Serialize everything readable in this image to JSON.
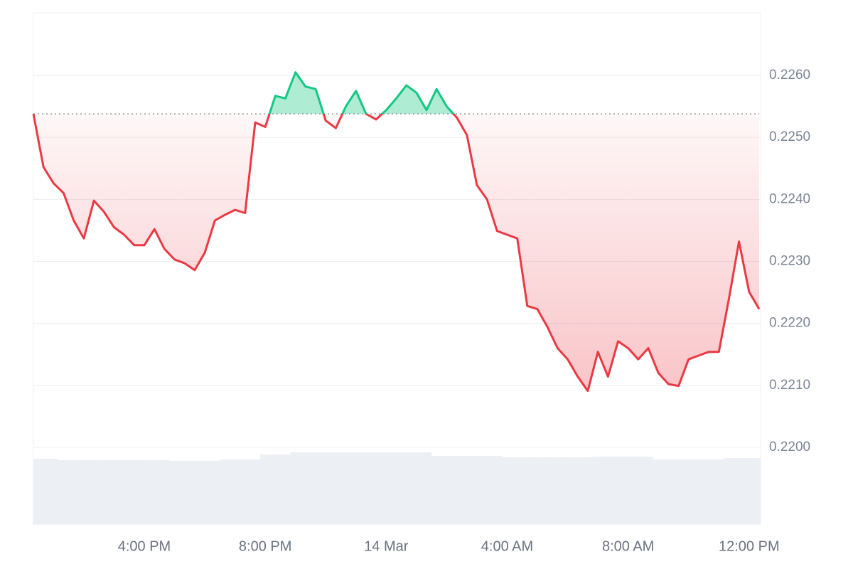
{
  "chart_data": {
    "type": "price-line",
    "categories": [
      null,
      null,
      null,
      null,
      null,
      null,
      null,
      null,
      null,
      null,
      null,
      "4:00 PM",
      null,
      null,
      null,
      null,
      null,
      null,
      null,
      null,
      null,
      null,
      null,
      "8:00 PM",
      null,
      null,
      null,
      null,
      null,
      null,
      null,
      null,
      null,
      null,
      null,
      "14 Mar",
      null,
      null,
      null,
      null,
      null,
      null,
      null,
      null,
      null,
      null,
      null,
      "4:00 AM",
      null,
      null,
      null,
      null,
      null,
      null,
      null,
      null,
      null,
      null,
      null,
      "8:00 AM",
      null,
      null,
      null,
      null,
      null,
      null,
      null,
      null,
      null,
      null,
      null,
      "12:00 PM",
      null
    ],
    "values": [
      0.22538,
      0.22452,
      0.22426,
      0.2241,
      0.22366,
      0.22337,
      0.22398,
      0.2238,
      0.22355,
      0.22343,
      0.22326,
      0.22326,
      0.22352,
      0.2232,
      0.22303,
      0.22297,
      0.22286,
      0.22314,
      0.22366,
      0.22375,
      0.22383,
      0.22378,
      0.22524,
      0.22517,
      0.22567,
      0.22563,
      0.22605,
      0.22582,
      0.22578,
      0.22527,
      0.22515,
      0.2255,
      0.22575,
      0.22538,
      0.22529,
      0.22544,
      0.22563,
      0.22584,
      0.22572,
      0.22544,
      0.22578,
      0.2255,
      0.22532,
      0.22504,
      0.22423,
      0.224,
      0.22349,
      0.22343,
      0.22337,
      0.22228,
      0.22223,
      0.22194,
      0.2216,
      0.22142,
      0.22114,
      0.22091,
      0.22154,
      0.22114,
      0.22171,
      0.2216,
      0.22142,
      0.2216,
      0.2212,
      0.22102,
      0.22099,
      0.22142,
      0.22148,
      0.22154,
      0.22154,
      0.2224,
      0.22332,
      0.22251,
      0.22223
    ],
    "volumes": [
      92,
      92,
      92,
      90,
      90,
      90,
      90,
      90,
      90,
      90,
      90,
      90,
      90,
      90,
      89,
      89,
      89,
      89,
      89,
      91,
      91,
      91,
      91,
      98,
      98,
      98,
      101,
      101,
      101,
      101,
      101,
      101,
      101,
      101,
      101,
      101,
      101,
      101,
      101,
      101,
      96,
      96,
      96,
      96,
      96,
      96,
      96,
      94,
      94,
      94,
      94,
      94,
      94,
      94,
      94,
      94,
      95,
      95,
      95,
      95,
      95,
      95,
      91,
      91,
      91,
      91,
      91,
      91,
      91,
      93,
      93,
      93,
      93
    ],
    "reference_line": 0.22538,
    "up_color": "#16c784",
    "down_color": "#ea3943",
    "volume_color": "#eceff3",
    "ylim": [
      0.21876,
      0.22701
    ],
    "yticks": [
      {
        "value": 0.22,
        "label": "0.2200"
      },
      {
        "value": 0.221,
        "label": "0.2210"
      },
      {
        "value": 0.222,
        "label": "0.2220"
      },
      {
        "value": 0.223,
        "label": "0.2230"
      },
      {
        "value": 0.224,
        "label": "0.2240"
      },
      {
        "value": 0.225,
        "label": "0.2250"
      },
      {
        "value": 0.226,
        "label": "0.2260"
      }
    ],
    "grid": true
  }
}
